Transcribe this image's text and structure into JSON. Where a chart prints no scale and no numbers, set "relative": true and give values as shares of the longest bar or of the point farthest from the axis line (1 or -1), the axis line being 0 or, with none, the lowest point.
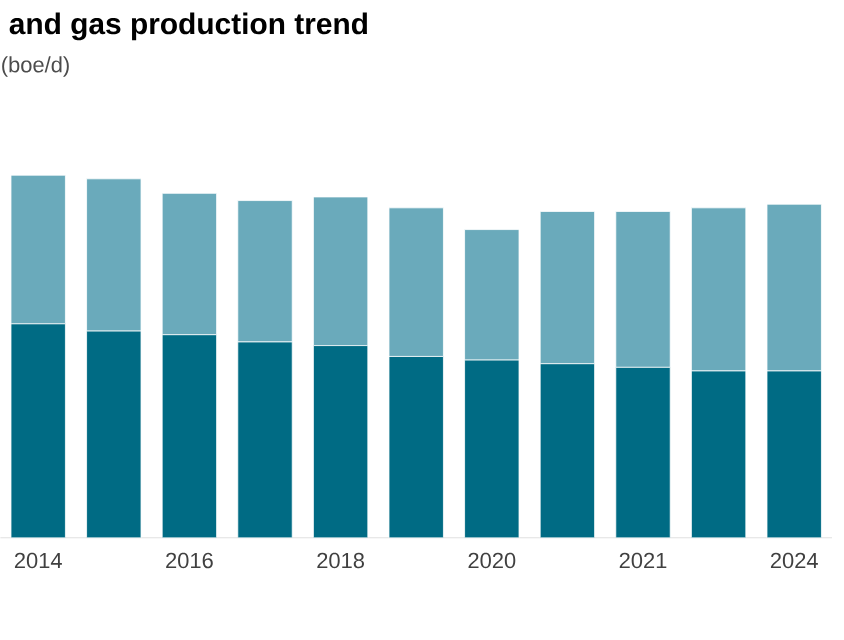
{
  "chart_data": {
    "type": "bar",
    "title": "and gas production trend",
    "subtitle": "(boe/d)",
    "stacked": true,
    "relative": true,
    "categories": [
      "2014",
      null,
      "2016",
      null,
      "2018",
      null,
      "2020",
      null,
      "2021",
      null,
      "2024"
    ],
    "series": [
      {
        "color": "#006b84",
        "values": [
          0.59,
          0.57,
          0.56,
          0.54,
          0.53,
          0.5,
          0.49,
          0.48,
          0.47,
          0.46,
          0.46
        ]
      },
      {
        "color": "#6aaabb",
        "values": [
          0.41,
          0.42,
          0.39,
          0.39,
          0.41,
          0.41,
          0.36,
          0.42,
          0.43,
          0.45,
          0.46
        ]
      }
    ]
  }
}
